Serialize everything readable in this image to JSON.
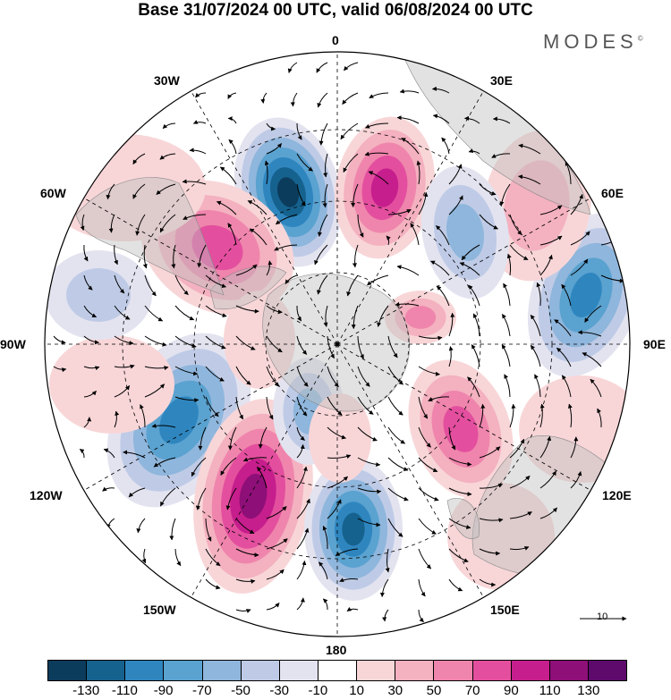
{
  "title": "Base 31/07/2024 00 UTC, valid 06/08/2024 00 UTC",
  "brand": "MODES",
  "brand_mark": "©",
  "lon_labels": {
    "l0": "0",
    "l30e": "30E",
    "l60e": "60E",
    "l90e": "90E",
    "l120e": "120E",
    "l150e": "150E",
    "l180": "180",
    "l150w": "150W",
    "l120w": "120W",
    "l90w": "90W",
    "l60w": "60W",
    "l30w": "30W"
  },
  "reference_vector": "10",
  "colorbar": {
    "colors": [
      "#0c3c5c",
      "#16628e",
      "#2f86bf",
      "#5aa2d0",
      "#8fb6dc",
      "#bfcbe6",
      "#e3e3f0",
      "#ffffff",
      "#f8d6d8",
      "#f4b1c0",
      "#ef85ac",
      "#e34f9e",
      "#c61e8c",
      "#8e0f78",
      "#5e0a6c"
    ],
    "ticks": [
      "-130",
      "-110",
      "-90",
      "-70",
      "-50",
      "-30",
      "-10",
      "10",
      "30",
      "50",
      "70",
      "90",
      "110",
      "130"
    ]
  }
}
